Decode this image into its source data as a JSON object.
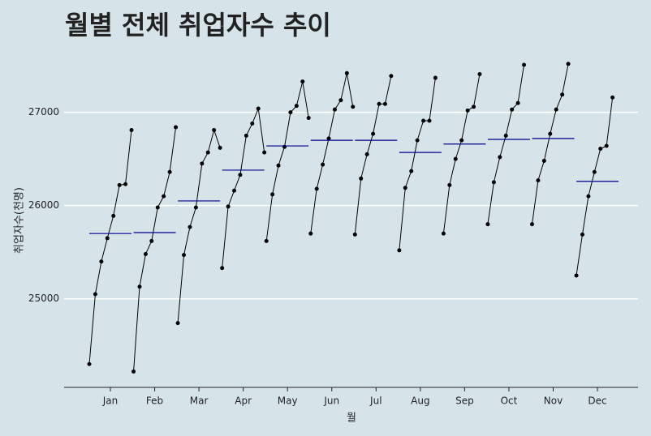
{
  "chart_data": {
    "type": "subseries",
    "title": "월별 전체 취업자수 추이",
    "xlabel": "월",
    "ylabel": "취업자수(천명)",
    "categories": [
      "Jan",
      "Feb",
      "Mar",
      "Apr",
      "May",
      "Jun",
      "Jul",
      "Aug",
      "Sep",
      "Oct",
      "Nov",
      "Dec"
    ],
    "values": [
      [
        24300,
        25050,
        25400,
        25650,
        25890,
        26220,
        26230,
        26810
      ],
      [
        24220,
        25130,
        25480,
        25620,
        25980,
        26100,
        26360,
        26840
      ],
      [
        24740,
        25470,
        25770,
        25980,
        26450,
        26570,
        26810,
        26620
      ],
      [
        25330,
        25990,
        26160,
        26330,
        26750,
        26880,
        27040,
        26570
      ],
      [
        25620,
        26120,
        26430,
        26630,
        27000,
        27070,
        27330,
        26940
      ],
      [
        25700,
        26180,
        26440,
        26720,
        27030,
        27130,
        27420,
        27060
      ],
      [
        25690,
        26290,
        26550,
        26770,
        27090,
        27090,
        27390
      ],
      [
        25520,
        26190,
        26370,
        26700,
        26910,
        26910,
        27370
      ],
      [
        25700,
        26220,
        26500,
        26700,
        27020,
        27060,
        27410
      ],
      [
        25800,
        26250,
        26520,
        26750,
        27030,
        27100,
        27510
      ],
      [
        25800,
        26270,
        26480,
        26770,
        27030,
        27190,
        27520
      ],
      [
        25250,
        25690,
        26100,
        26360,
        26610,
        26640,
        27160
      ]
    ],
    "means": [
      25700,
      25710,
      26050,
      26380,
      26640,
      26700,
      26700,
      26570,
      26660,
      26710,
      26720,
      26260
    ],
    "line_color": "#000000",
    "mean_color": "#00008b",
    "ylim": [
      24050,
      27640
    ],
    "yticks": [
      25000,
      26000,
      27000
    ],
    "grid": true
  }
}
